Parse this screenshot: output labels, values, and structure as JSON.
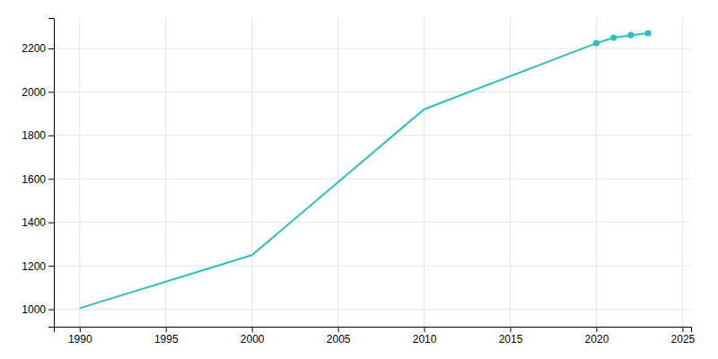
{
  "chart_data": {
    "type": "line",
    "x": [
      1990,
      2000,
      2010,
      2020,
      2021,
      2022,
      2023
    ],
    "series": [
      {
        "type": "line",
        "color": "#2bbfbf",
        "values": [
          1005,
          1249,
          1920,
          2224,
          2249,
          2261,
          2270
        ]
      },
      {
        "type": "scatter",
        "color": "#2bbfbf",
        "marker": "circle",
        "values": [
          null,
          null,
          null,
          2224,
          2249,
          2261,
          2270
        ]
      }
    ],
    "xlim": [
      1988.5,
      2025.5
    ],
    "ylim": [
      920,
      2340
    ],
    "xticks": [
      1990,
      1995,
      2000,
      2005,
      2010,
      2015,
      2020,
      2025
    ],
    "yticks": [
      1000,
      1200,
      1400,
      1600,
      1800,
      2000,
      2200
    ],
    "grid": true
  }
}
